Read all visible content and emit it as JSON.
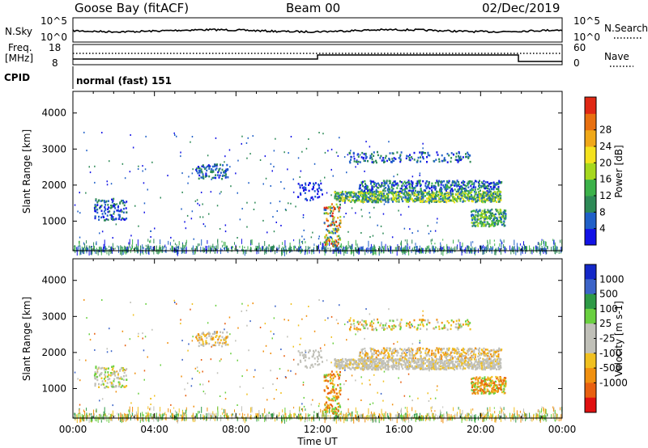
{
  "header": {
    "station": "Goose Bay (fitACF)",
    "beam": "Beam 00",
    "date": "02/Dec/2019"
  },
  "noise_panel": {
    "left_label": "N.Sky",
    "left_ticks": [
      "10^5",
      "10^0"
    ],
    "right_label": "N.Search",
    "right_ticks": [
      "10^5",
      "10^0"
    ]
  },
  "freq_panel": {
    "left_label_1": "Freq.",
    "left_label_2": "[MHz]",
    "left_ticks": [
      "18",
      "8"
    ],
    "right_label": "Nave",
    "right_ticks": [
      "60",
      "0"
    ],
    "cpid_label": "CPID",
    "cpid_text": "normal (fast) 151"
  },
  "chart_data": [
    {
      "type": "heatmap",
      "panel": "power",
      "ylabel": "Slant Range [km]",
      "xlabel": "",
      "yticks": [
        "1000",
        "2000",
        "3000",
        "4000"
      ],
      "ylim": [
        180,
        4600
      ],
      "xlim": [
        0,
        24
      ],
      "colorbar_label": "Power [dB]",
      "colorbar_ticks": [
        "4",
        "8",
        "12",
        "16",
        "20",
        "24",
        "28"
      ],
      "colorbar_colors": [
        "#1212e6",
        "#2060c8",
        "#2e8a57",
        "#3cb24a",
        "#a6d81e",
        "#f4e21e",
        "#f0a818",
        "#e87010",
        "#e02814"
      ]
    },
    {
      "type": "heatmap",
      "panel": "velocity",
      "ylabel": "Slant Range [km]",
      "xlabel": "Time UT",
      "xticks": [
        "00:00",
        "04:00",
        "08:00",
        "12:00",
        "16:00",
        "20:00",
        "00:00"
      ],
      "yticks": [
        "1000",
        "2000",
        "3000",
        "4000"
      ],
      "ylim": [
        180,
        4600
      ],
      "xlim": [
        0,
        24
      ],
      "colorbar_label": "Velocity [m s-1]",
      "colorbar_ticks": [
        "1000",
        "500",
        "100",
        "25",
        "-25",
        "-100",
        "-500",
        "-1000"
      ],
      "colorbar_colors": [
        "#1428c8",
        "#3c64c8",
        "#2e9a46",
        "#6ad040",
        "#c0c0b8",
        "#c0c0b8",
        "#f0c020",
        "#f09010",
        "#e86010",
        "#e01010"
      ]
    }
  ]
}
